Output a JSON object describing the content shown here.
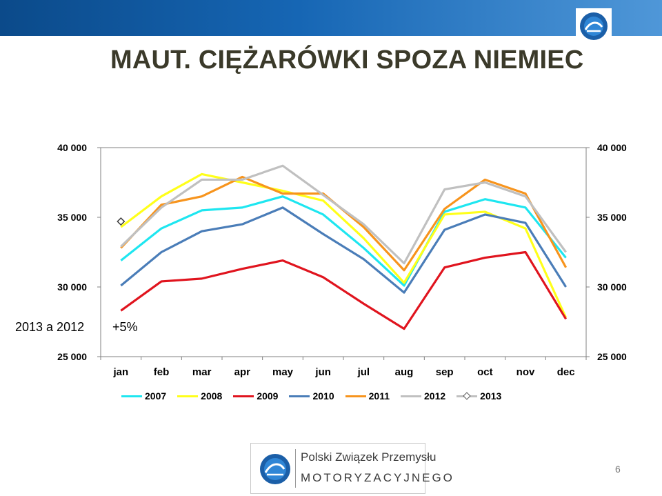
{
  "slide": {
    "title": "MAUT. CIĘŻARÓWKI SPOZA NIEMIEC",
    "page_number": "6",
    "comparison_label": "2013 a 2012",
    "comparison_value": "+5%",
    "footer": {
      "name": "Polski Związek Przemysłu",
      "sub": "MOTORYZACYJNEGO"
    }
  },
  "colors": {
    "bar": "#1666b4",
    "title": "#3b3a2a"
  },
  "chart_data": {
    "type": "line",
    "title": "",
    "xlabel": "",
    "ylabel": "",
    "categories": [
      "jan",
      "feb",
      "mar",
      "apr",
      "may",
      "jun",
      "jul",
      "aug",
      "sep",
      "oct",
      "nov",
      "dec"
    ],
    "ylim": [
      25000,
      40000
    ],
    "yticks": [
      25000,
      30000,
      35000,
      40000
    ],
    "ytick_labels": [
      "25 000",
      "30 000",
      "35 000",
      "40 000"
    ],
    "secondary_axis": true,
    "grid": false,
    "legend": "bottom",
    "series": [
      {
        "name": "2007",
        "color": "#1ee6f0",
        "values": [
          31900,
          34200,
          35500,
          35700,
          36500,
          35200,
          32800,
          30100,
          35400,
          36300,
          35700,
          32100
        ]
      },
      {
        "name": "2008",
        "color": "#ffff1a",
        "values": [
          34300,
          36500,
          38100,
          37500,
          36900,
          36200,
          33500,
          30300,
          35200,
          35400,
          34200,
          27800
        ]
      },
      {
        "name": "2009",
        "color": "#e0141e",
        "values": [
          28300,
          30400,
          30600,
          31300,
          31900,
          30700,
          28800,
          27000,
          31400,
          32100,
          32500,
          27700
        ]
      },
      {
        "name": "2010",
        "color": "#4a7db8",
        "values": [
          30100,
          32500,
          34000,
          34500,
          35700,
          33800,
          32000,
          29600,
          34100,
          35200,
          34600,
          30000
        ]
      },
      {
        "name": "2011",
        "color": "#f7941d",
        "values": [
          32800,
          35900,
          36500,
          37900,
          36700,
          36700,
          34300,
          31200,
          35600,
          37700,
          36700,
          31400
        ]
      },
      {
        "name": "2012",
        "color": "#c0c0c0",
        "values": [
          32900,
          35700,
          37700,
          37700,
          38700,
          36600,
          34500,
          31700,
          37000,
          37500,
          36500,
          32500
        ]
      },
      {
        "name": "2013",
        "color": "#c0c0c0",
        "marker": "diamond",
        "values": [
          34700,
          null,
          null,
          null,
          null,
          null,
          null,
          null,
          null,
          null,
          null,
          null
        ]
      }
    ]
  }
}
